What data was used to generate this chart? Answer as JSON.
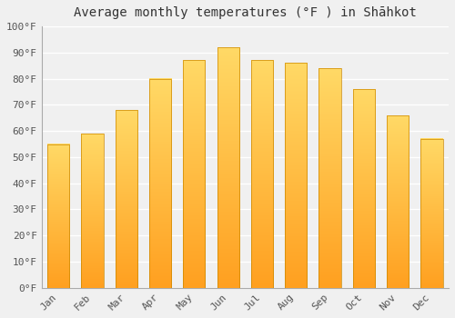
{
  "title": "Average monthly temperatures (°F ) in Shāhkot",
  "months": [
    "Jan",
    "Feb",
    "Mar",
    "Apr",
    "May",
    "Jun",
    "Jul",
    "Aug",
    "Sep",
    "Oct",
    "Nov",
    "Dec"
  ],
  "values": [
    55,
    59,
    68,
    80,
    87,
    92,
    87,
    86,
    84,
    76,
    66,
    57
  ],
  "bar_color": "#FFA500",
  "bar_highlight": "#FFD966",
  "ylim": [
    0,
    100
  ],
  "yticks": [
    0,
    10,
    20,
    30,
    40,
    50,
    60,
    70,
    80,
    90,
    100
  ],
  "ytick_labels": [
    "0°F",
    "10°F",
    "20°F",
    "30°F",
    "40°F",
    "50°F",
    "60°F",
    "70°F",
    "80°F",
    "90°F",
    "100°F"
  ],
  "background_color": "#f0f0f0",
  "grid_color": "#ffffff",
  "title_fontsize": 10,
  "tick_fontsize": 8
}
